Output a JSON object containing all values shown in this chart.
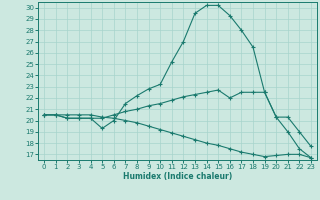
{
  "xlabel": "Humidex (Indice chaleur)",
  "bg_color": "#cce8e0",
  "line_color": "#1a7a6e",
  "grid_color": "#a8d4cc",
  "xlim": [
    -0.5,
    23.5
  ],
  "ylim": [
    16.5,
    30.5
  ],
  "xticks": [
    0,
    1,
    2,
    3,
    4,
    5,
    6,
    7,
    8,
    9,
    10,
    11,
    12,
    13,
    14,
    15,
    16,
    17,
    18,
    19,
    20,
    21,
    22,
    23
  ],
  "yticks": [
    17,
    18,
    19,
    20,
    21,
    22,
    23,
    24,
    25,
    26,
    27,
    28,
    29,
    30
  ],
  "series1_x": [
    0,
    1,
    2,
    3,
    4,
    5,
    6,
    7,
    8,
    9,
    10,
    11,
    12,
    13,
    14,
    15,
    16,
    17,
    18,
    19,
    20,
    21,
    22,
    23
  ],
  "series1_y": [
    20.5,
    20.5,
    20.2,
    20.2,
    20.2,
    19.3,
    20.0,
    21.5,
    22.2,
    22.8,
    23.2,
    25.2,
    27.0,
    29.5,
    30.2,
    30.2,
    29.3,
    28.0,
    26.5,
    22.5,
    20.3,
    19.0,
    17.5,
    16.7
  ],
  "series2_x": [
    0,
    1,
    2,
    3,
    4,
    5,
    6,
    7,
    8,
    9,
    10,
    11,
    12,
    13,
    14,
    15,
    16,
    17,
    18,
    19,
    20,
    21,
    22,
    23
  ],
  "series2_y": [
    20.5,
    20.5,
    20.2,
    20.2,
    20.2,
    20.2,
    20.5,
    20.8,
    21.0,
    21.3,
    21.5,
    21.8,
    22.1,
    22.3,
    22.5,
    22.7,
    22.0,
    22.5,
    22.5,
    22.5,
    20.3,
    20.3,
    19.0,
    17.7
  ],
  "series3_x": [
    0,
    1,
    2,
    3,
    4,
    5,
    6,
    7,
    8,
    9,
    10,
    11,
    12,
    13,
    14,
    15,
    16,
    17,
    18,
    19,
    20,
    21,
    22,
    23
  ],
  "series3_y": [
    20.5,
    20.5,
    20.5,
    20.5,
    20.5,
    20.3,
    20.2,
    20.0,
    19.8,
    19.5,
    19.2,
    18.9,
    18.6,
    18.3,
    18.0,
    17.8,
    17.5,
    17.2,
    17.0,
    16.8,
    16.9,
    17.0,
    17.0,
    16.7
  ]
}
